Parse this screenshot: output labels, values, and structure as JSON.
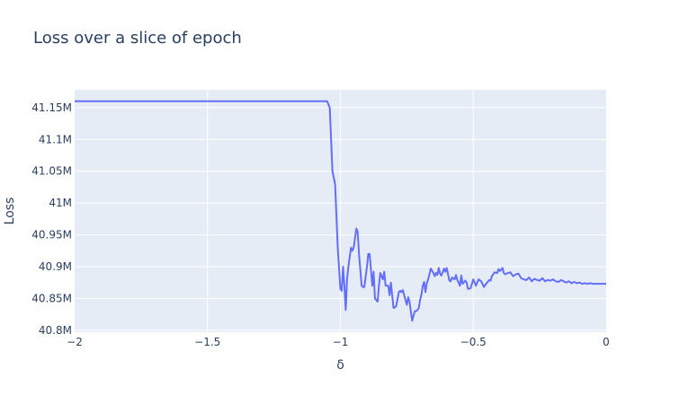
{
  "chart_data": {
    "type": "line",
    "title": "Loss over a slice of epoch",
    "xlabel": "δ",
    "ylabel": "Loss",
    "xlim": [
      -2,
      0
    ],
    "ylim": [
      40797000,
      41178000
    ],
    "xticks": [
      -2,
      -1.5,
      -1,
      -0.5,
      0
    ],
    "xtick_labels": [
      "−2",
      "−1.5",
      "−1",
      "−0.5",
      "0"
    ],
    "yticks": [
      40800000,
      40850000,
      40900000,
      40950000,
      41000000,
      41050000,
      41100000,
      41150000
    ],
    "ytick_labels": [
      "40.8M",
      "40.85M",
      "40.9M",
      "40.95M",
      "41M",
      "41.05M",
      "41.1M",
      "41.15M"
    ],
    "grid": true,
    "colors": {
      "line": "#636efa",
      "plot_bg": "#e5ecf6",
      "grid": "#ffffff",
      "text": "#2a3f5f"
    },
    "series": [
      {
        "x": [
          -2.0,
          -1.05,
          -1.04,
          -1.03,
          -1.02,
          -1.01,
          -1.0,
          -0.995,
          -0.99,
          -0.985,
          -0.98,
          -0.975,
          -0.97,
          -0.96,
          -0.955,
          -0.95,
          -0.94,
          -0.935,
          -0.93,
          -0.92,
          -0.915,
          -0.91,
          -0.9,
          -0.895,
          -0.89,
          -0.88,
          -0.875,
          -0.87,
          -0.86,
          -0.855,
          -0.85,
          -0.84,
          -0.835,
          -0.83,
          -0.82,
          -0.815,
          -0.81,
          -0.8,
          -0.795,
          -0.79,
          -0.78,
          -0.775,
          -0.77,
          -0.765,
          -0.76,
          -0.75,
          -0.745,
          -0.74,
          -0.735,
          -0.73,
          -0.72,
          -0.715,
          -0.71,
          -0.705,
          -0.7,
          -0.695,
          -0.69,
          -0.685,
          -0.68,
          -0.675,
          -0.67,
          -0.665,
          -0.66,
          -0.65,
          -0.645,
          -0.64,
          -0.635,
          -0.63,
          -0.625,
          -0.62,
          -0.61,
          -0.605,
          -0.6,
          -0.59,
          -0.585,
          -0.58,
          -0.57,
          -0.565,
          -0.56,
          -0.55,
          -0.545,
          -0.54,
          -0.53,
          -0.525,
          -0.52,
          -0.51,
          -0.5,
          -0.49,
          -0.48,
          -0.47,
          -0.46,
          -0.45,
          -0.44,
          -0.435,
          -0.43,
          -0.42,
          -0.41,
          -0.405,
          -0.4,
          -0.39,
          -0.385,
          -0.38,
          -0.37,
          -0.36,
          -0.35,
          -0.34,
          -0.33,
          -0.32,
          -0.31,
          -0.3,
          -0.29,
          -0.28,
          -0.27,
          -0.26,
          -0.25,
          -0.24,
          -0.23,
          -0.22,
          -0.21,
          -0.2,
          -0.19,
          -0.18,
          -0.17,
          -0.16,
          -0.15,
          -0.14,
          -0.13,
          -0.12,
          -0.11,
          -0.1,
          -0.09,
          -0.08,
          -0.07,
          -0.06,
          -0.05,
          0.0
        ],
        "y": [
          41160000,
          41160000,
          41150000,
          41050000,
          41030000,
          40930000,
          40865000,
          40862000,
          40900000,
          40870000,
          40832000,
          40880000,
          40900000,
          40930000,
          40925000,
          40930000,
          40960000,
          40955000,
          40920000,
          40870000,
          40868000,
          40868000,
          40900000,
          40920000,
          40920000,
          40870000,
          40892000,
          40850000,
          40845000,
          40870000,
          40890000,
          40880000,
          40892000,
          40870000,
          40870000,
          40855000,
          40875000,
          40835000,
          40836000,
          40838000,
          40860000,
          40862000,
          40860000,
          40863000,
          40855000,
          40840000,
          40852000,
          40845000,
          40830000,
          40815000,
          40830000,
          40830000,
          40832000,
          40835000,
          40848000,
          40856000,
          40870000,
          40876000,
          40860000,
          40874000,
          40880000,
          40888000,
          40897000,
          40890000,
          40885000,
          40890000,
          40887000,
          40898000,
          40889000,
          40886000,
          40897000,
          40892000,
          40898000,
          40878000,
          40877000,
          40883000,
          40880000,
          40887000,
          40879000,
          40870000,
          40886000,
          40873000,
          40878000,
          40875000,
          40865000,
          40866000,
          40880000,
          40870000,
          40880000,
          40877000,
          40868000,
          40874000,
          40879000,
          40878000,
          40885000,
          40891000,
          40890000,
          40896000,
          40893000,
          40898000,
          40890000,
          40888000,
          40890000,
          40891000,
          40885000,
          40888000,
          40889000,
          40882000,
          40880000,
          40879000,
          40883000,
          40877000,
          40881000,
          40879000,
          40878000,
          40882000,
          40877000,
          40879000,
          40878000,
          40880000,
          40877000,
          40876000,
          40879000,
          40877000,
          40875000,
          40877000,
          40874000,
          40876000,
          40874000,
          40875000,
          40873000,
          40874000,
          40873000,
          40874000,
          40873000,
          40873000
        ]
      }
    ]
  }
}
